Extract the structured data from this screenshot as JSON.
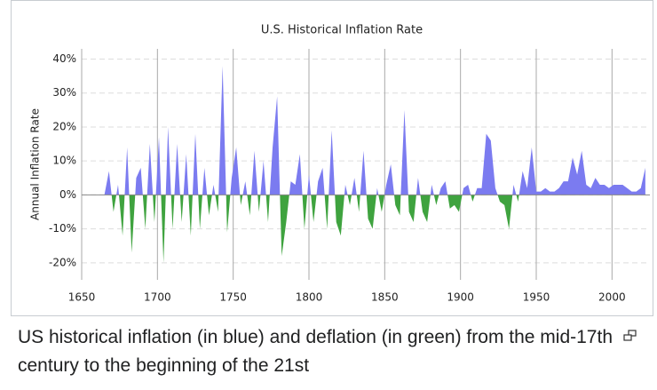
{
  "chart_data": {
    "type": "area",
    "title": "U.S. Historical Inflation Rate",
    "y_label": "Annual Inflation Rate",
    "x": [
      1665,
      1668,
      1671,
      1674,
      1677,
      1680,
      1683,
      1686,
      1689,
      1692,
      1695,
      1698,
      1701,
      1704,
      1707,
      1710,
      1713,
      1716,
      1719,
      1722,
      1725,
      1728,
      1731,
      1734,
      1737,
      1740,
      1743,
      1746,
      1749,
      1752,
      1755,
      1758,
      1761,
      1764,
      1767,
      1770,
      1773,
      1776,
      1779,
      1782,
      1785,
      1788,
      1791,
      1794,
      1797,
      1800,
      1803,
      1806,
      1809,
      1812,
      1815,
      1818,
      1821,
      1824,
      1827,
      1830,
      1833,
      1836,
      1839,
      1842,
      1845,
      1848,
      1851,
      1854,
      1857,
      1860,
      1863,
      1866,
      1869,
      1872,
      1875,
      1878,
      1881,
      1884,
      1887,
      1890,
      1893,
      1896,
      1899,
      1902,
      1905,
      1908,
      1911,
      1914,
      1917,
      1920,
      1923,
      1926,
      1929,
      1932,
      1935,
      1938,
      1941,
      1944,
      1947,
      1950,
      1953,
      1956,
      1959,
      1962,
      1965,
      1968,
      1971,
      1974,
      1977,
      1980,
      1983,
      1986,
      1989,
      1992,
      1995,
      1998,
      2001,
      2004,
      2007,
      2010,
      2013,
      2016,
      2019,
      2022
    ],
    "values": [
      0,
      7,
      -5,
      3,
      -12,
      14,
      -17,
      5,
      8,
      -10,
      15,
      -8,
      17,
      -20,
      20,
      -10,
      15,
      -8,
      12,
      -12,
      18,
      -10,
      8,
      -6,
      3,
      -5,
      38,
      -11,
      5,
      14,
      -3,
      4,
      -6,
      13,
      -5,
      10,
      -8,
      14,
      29,
      -18,
      -8,
      4,
      3,
      12,
      -10,
      6,
      -8,
      4,
      8,
      -10,
      19,
      -8,
      -12,
      3,
      -3,
      5,
      -5,
      13,
      -7,
      -10,
      2,
      -5,
      3,
      9,
      -3,
      -6,
      25,
      -5,
      -8,
      5,
      -5,
      -8,
      3,
      -3,
      2,
      4,
      -4,
      -3,
      -5,
      2,
      3,
      -2,
      2,
      2,
      18,
      16,
      2,
      -2,
      -3,
      -10,
      3,
      -2,
      7,
      2,
      14,
      1,
      1,
      2,
      1,
      1,
      2,
      4,
      4,
      11,
      6,
      13,
      3,
      2,
      5,
      3,
      3,
      2,
      3,
      3,
      3,
      2,
      1,
      1,
      2,
      8
    ],
    "positive_color": "#7b7bf0",
    "negative_color": "#3fa33f",
    "xlim": [
      1650,
      2025
    ],
    "ylim": [
      -25,
      43
    ],
    "xticks": [
      1650,
      1700,
      1750,
      1800,
      1850,
      1900,
      1950,
      2000
    ],
    "yticks": [
      {
        "value": -20,
        "label": "-20%"
      },
      {
        "value": -10,
        "label": "-10%"
      },
      {
        "value": 0,
        "label": "0%"
      },
      {
        "value": 10,
        "label": "10%"
      },
      {
        "value": 20,
        "label": "20%"
      },
      {
        "value": 30,
        "label": "30%"
      },
      {
        "value": 40,
        "label": "40%"
      }
    ],
    "grid": true
  },
  "caption": "US historical inflation (in blue) and deflation (in green) from the mid-17th century to the beginning of the 21st"
}
